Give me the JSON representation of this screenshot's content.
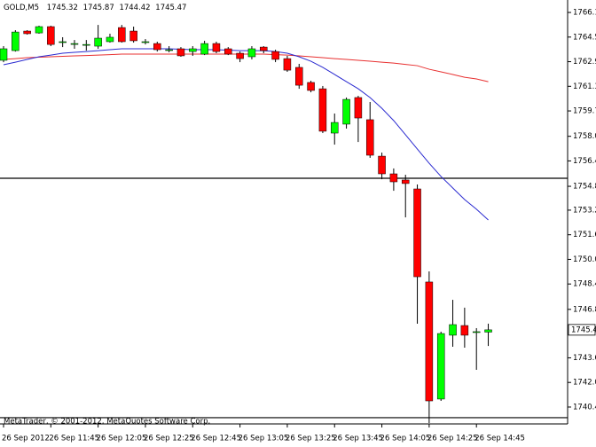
{
  "chart_data": {
    "type": "candlestick",
    "title": "GOLD,M5",
    "categories": [
      "26 Sep 2012",
      null,
      null,
      null,
      "26 Sep 11:45",
      null,
      null,
      null,
      "26 Sep 12:05",
      null,
      null,
      null,
      "26 Sep 12:25",
      null,
      null,
      null,
      "26 Sep 12:45",
      null,
      null,
      null,
      "26 Sep 13:05",
      null,
      null,
      null,
      "26 Sep 13:25",
      null,
      null,
      null,
      "26 Sep 13:45",
      null,
      null,
      null,
      "26 Sep 14:05",
      null,
      null,
      null,
      "26 Sep 14:25",
      null,
      null,
      null,
      "26 Sep 14:45",
      null
    ],
    "open": [
      1762.99,
      1763.62,
      1764.89,
      1764.77,
      1765.18,
      1764.2,
      1764.08,
      1764.02,
      1763.91,
      1764.2,
      1765.12,
      1764.89,
      1764.2,
      1764.08,
      1763.68,
      1763.74,
      1763.56,
      1763.39,
      1764.08,
      1763.74,
      1763.45,
      1763.22,
      1763.85,
      1763.56,
      1763.1,
      1762.53,
      1761.55,
      1761.14,
      1758.26,
      1758.84,
      1760.57,
      1759.13,
      1756.76,
      1755.61,
      1755.21,
      1754.63,
      1748.58,
      1740.97,
      1745.12,
      1745.75,
      1745.35,
      1745.32
    ],
    "high": [
      1763.91,
      1764.95,
      1764.95,
      1765.24,
      1765.24,
      1764.49,
      1764.31,
      1764.31,
      1765.29,
      1764.72,
      1765.29,
      1765.18,
      1764.37,
      1764.2,
      1763.91,
      1763.85,
      1763.91,
      1764.26,
      1764.2,
      1763.85,
      1763.56,
      1763.91,
      1763.91,
      1763.68,
      1763.28,
      1762.76,
      1761.66,
      1761.32,
      1759.53,
      1760.57,
      1760.68,
      1760.28,
      1756.99,
      1755.96,
      1755.55,
      1754.92,
      1749.27,
      1745.35,
      1747.42,
      1746.91,
      1745.58,
      1745.87
    ],
    "low": [
      1762.87,
      1763.56,
      1764.66,
      1764.72,
      1763.91,
      1763.85,
      1763.74,
      1763.62,
      1763.74,
      1764.14,
      1764.14,
      1764.14,
      1764.02,
      1763.56,
      1763.51,
      1763.22,
      1763.28,
      1763.33,
      1763.45,
      1763.33,
      1762.87,
      1763.05,
      1763.45,
      1762.87,
      1762.24,
      1761.14,
      1760.91,
      1758.26,
      1757.51,
      1758.55,
      1757.68,
      1756.65,
      1755.26,
      1754.51,
      1752.78,
      1745.87,
      1739.41,
      1740.85,
      1744.37,
      1744.31,
      1742.87,
      1744.42
    ],
    "close": [
      1763.74,
      1764.83,
      1764.72,
      1765.18,
      1764.02,
      1764.2,
      1764.08,
      1764.02,
      1764.43,
      1764.49,
      1764.2,
      1764.26,
      1764.2,
      1763.68,
      1763.68,
      1763.28,
      1763.74,
      1764.08,
      1763.56,
      1763.39,
      1763.1,
      1763.74,
      1763.62,
      1763.05,
      1762.35,
      1761.37,
      1761.03,
      1758.38,
      1758.95,
      1760.45,
      1759.24,
      1756.82,
      1755.61,
      1755.09,
      1754.98,
      1748.92,
      1740.85,
      1745.23,
      1745.81,
      1745.12,
      1745.35,
      1745.47
    ],
    "up_color": "#00ff00",
    "down_color": "#ff0000",
    "lines": [
      {
        "color": "#e83030",
        "values": [
          1763.05,
          1763.1,
          1763.16,
          1763.19,
          1763.22,
          1763.25,
          1763.28,
          1763.3,
          1763.33,
          1763.36,
          1763.39,
          1763.39,
          1763.39,
          1763.39,
          1763.39,
          1763.39,
          1763.39,
          1763.39,
          1763.39,
          1763.39,
          1763.39,
          1763.39,
          1763.39,
          1763.36,
          1763.33,
          1763.28,
          1763.22,
          1763.16,
          1763.1,
          1763.05,
          1762.99,
          1762.93,
          1762.87,
          1762.81,
          1762.72,
          1762.64,
          1762.41,
          1762.24,
          1762.07,
          1761.89,
          1761.78,
          1761.6
        ]
      },
      {
        "color": "#2a2ad0",
        "values": [
          1762.7,
          1762.87,
          1763.05,
          1763.22,
          1763.33,
          1763.45,
          1763.51,
          1763.56,
          1763.62,
          1763.68,
          1763.74,
          1763.74,
          1763.74,
          1763.74,
          1763.74,
          1763.71,
          1763.68,
          1763.68,
          1763.68,
          1763.65,
          1763.62,
          1763.62,
          1763.62,
          1763.56,
          1763.45,
          1763.22,
          1762.93,
          1762.53,
          1762.07,
          1761.6,
          1761.14,
          1760.57,
          1759.87,
          1759.07,
          1758.15,
          1757.22,
          1756.3,
          1755.44,
          1754.69,
          1753.94,
          1753.31,
          1752.61
        ]
      }
    ],
    "hlines": [
      1755.32,
      1739.76
    ],
    "current_price": 1745.47,
    "footer": "MetaTrader, © 2001-2012, MetaQuotes Software Corp.",
    "ylim": [
      1739.41,
      1766.91
    ],
    "yticks": [
      {
        "value": 1766.1,
        "label": "1766.10"
      },
      {
        "value": 1764.5,
        "label": "1764.50"
      },
      {
        "value": 1762.9,
        "label": "1762.90"
      },
      {
        "value": 1761.3,
        "label": "1761.30"
      },
      {
        "value": 1759.7,
        "label": "1759.70"
      },
      1758.05,
      1756.45,
      {
        "value": 1754.8,
        "label": "1754.80"
      },
      1753.25,
      1751.65,
      1750.05,
      1748.45,
      {
        "value": 1746.8,
        "label": "1746.80"
      },
      1743.65,
      1742.05,
      1740.45
    ]
  }
}
